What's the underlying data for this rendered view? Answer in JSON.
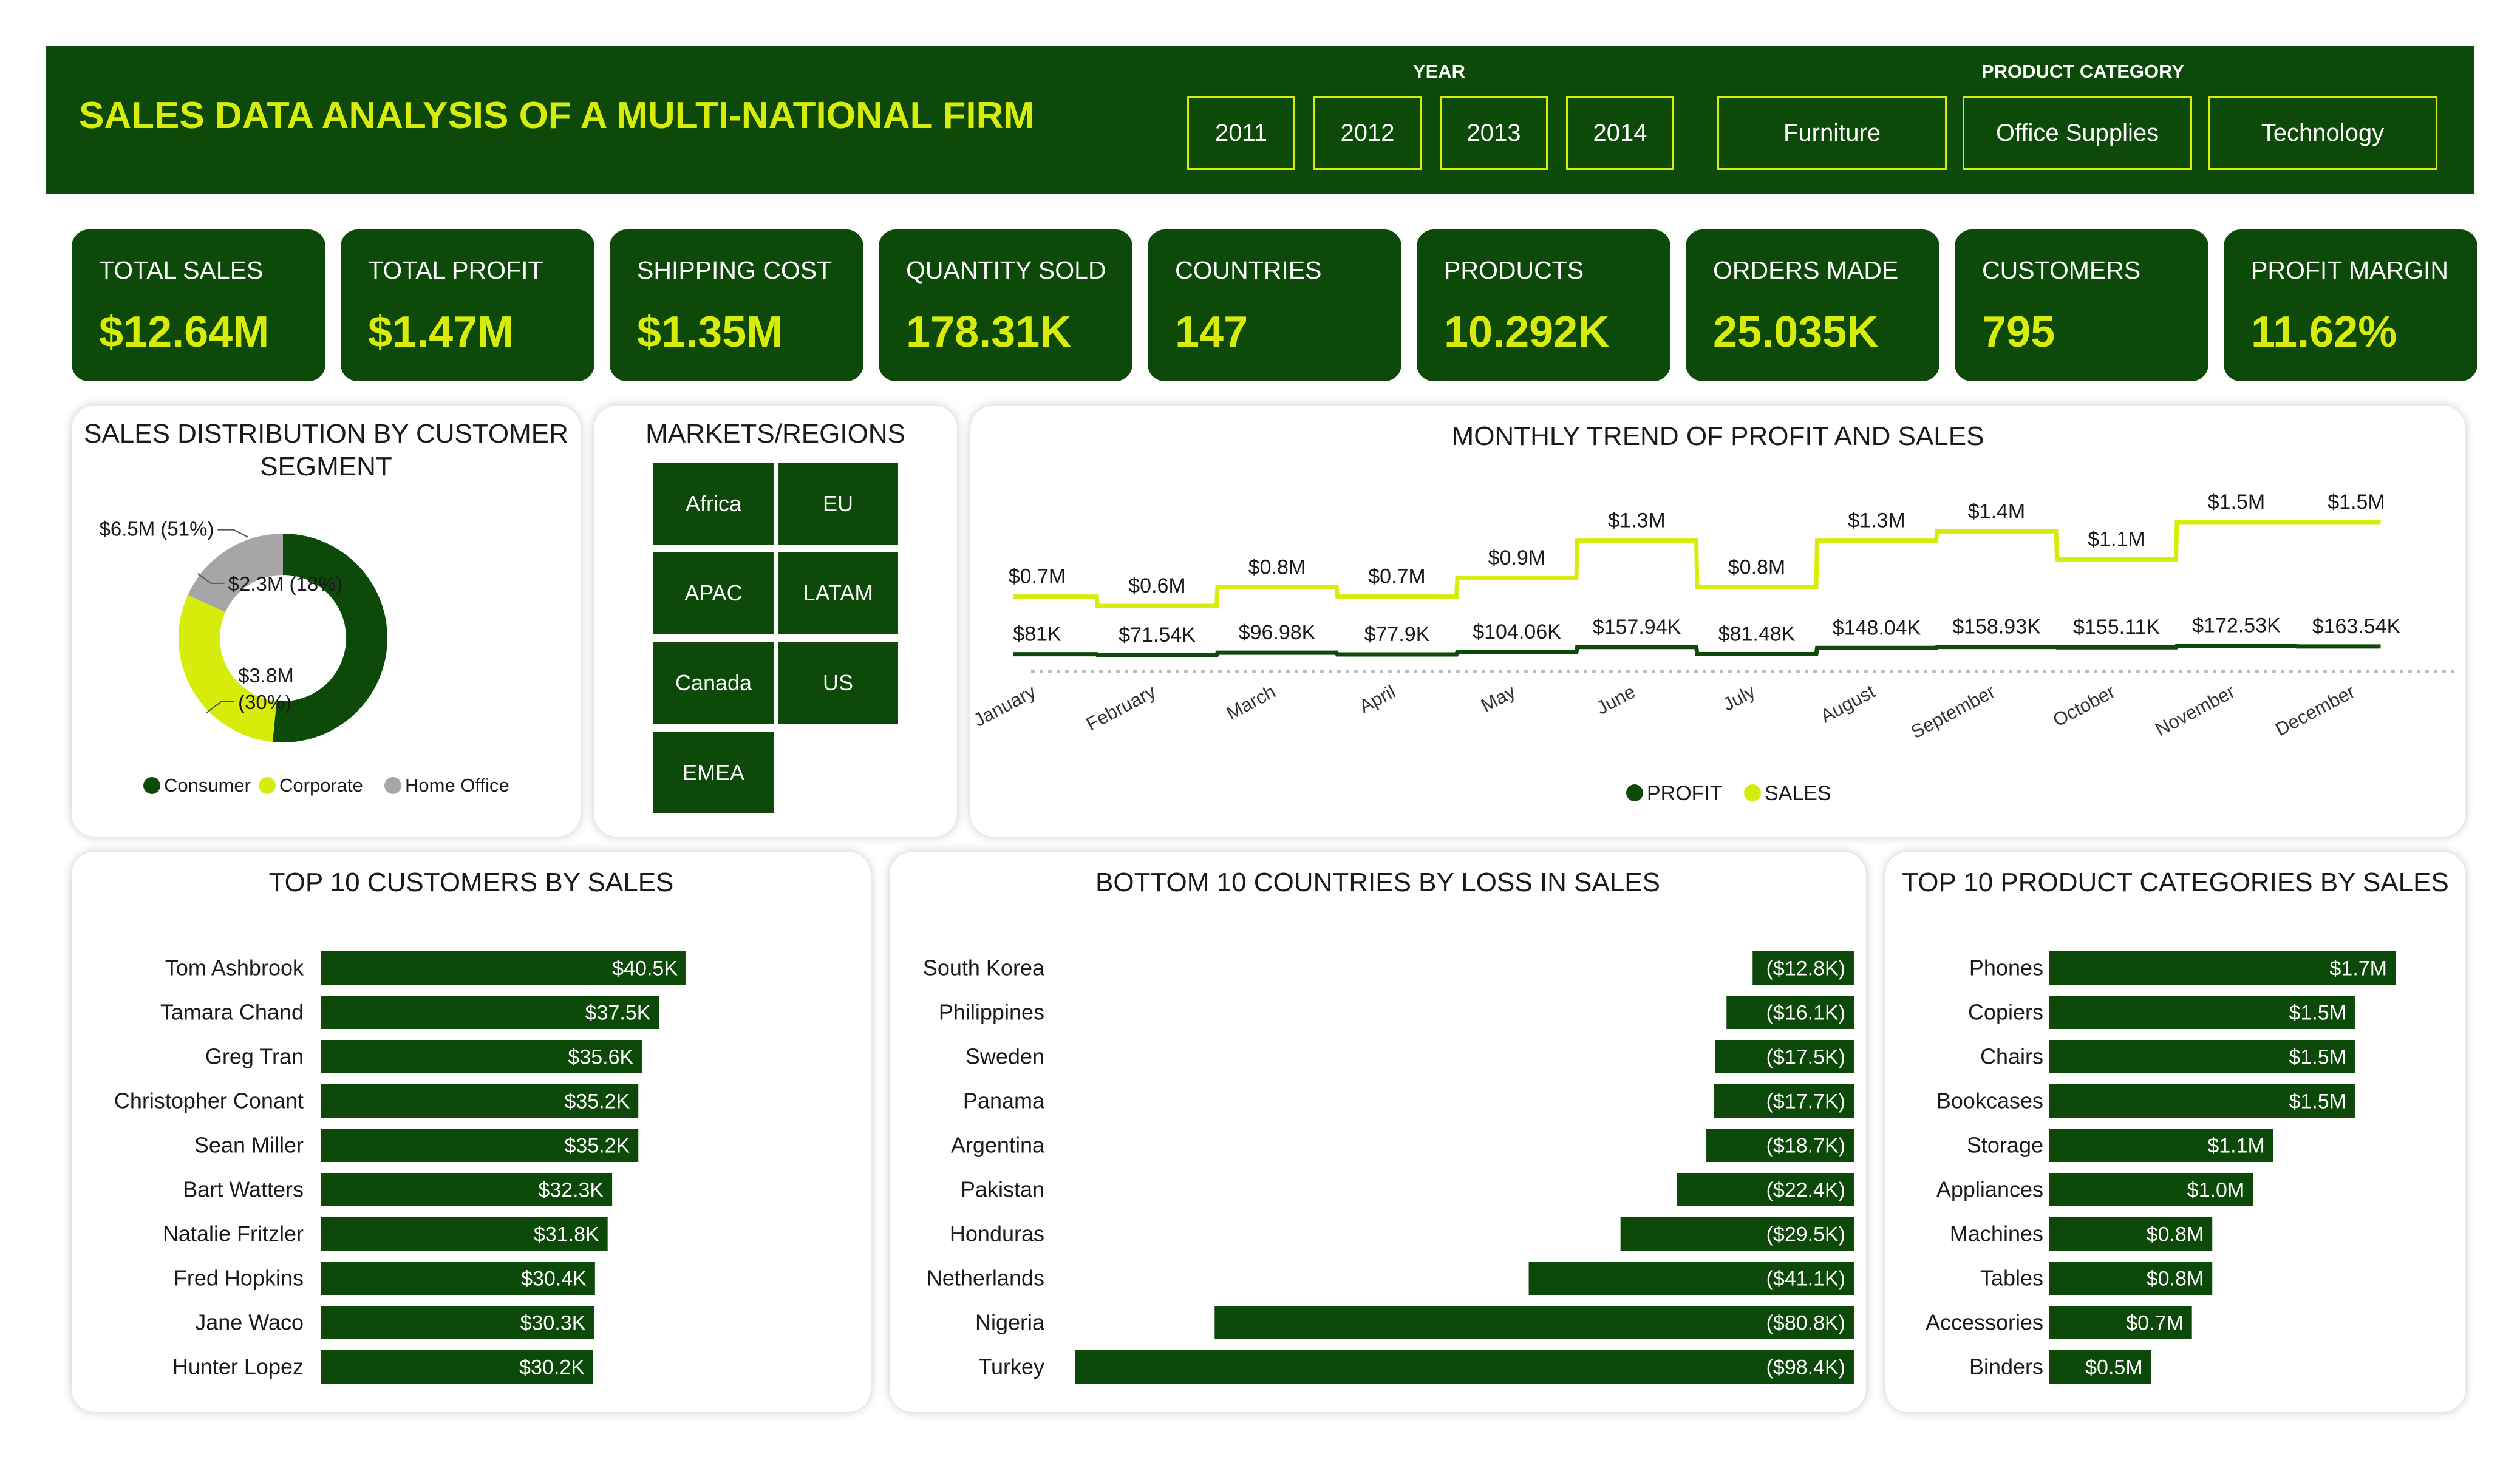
{
  "header": {
    "title": "SALES DATA ANALYSIS OF A MULTI-NATIONAL FIRM",
    "year_label": "YEAR",
    "years": [
      "2011",
      "2012",
      "2013",
      "2014"
    ],
    "category_label": "PRODUCT CATEGORY",
    "categories": [
      "Furniture",
      "Office Supplies",
      "Technology"
    ]
  },
  "kpis": [
    {
      "label": "TOTAL SALES",
      "value": "$12.64M"
    },
    {
      "label": "TOTAL PROFIT",
      "value": "$1.47M"
    },
    {
      "label": "SHIPPING COST",
      "value": "$1.35M"
    },
    {
      "label": "QUANTITY SOLD",
      "value": "178.31K"
    },
    {
      "label": "COUNTRIES",
      "value": "147"
    },
    {
      "label": "PRODUCTS",
      "value": "10.292K"
    },
    {
      "label": "ORDERS MADE",
      "value": "25.035K"
    },
    {
      "label": "CUSTOMERS",
      "value": "795"
    },
    {
      "label": "PROFIT MARGIN",
      "value": "11.62%"
    }
  ],
  "segment_card": {
    "title_line1": "SALES DISTRIBUTION BY CUSTOMER",
    "title_line2": "SEGMENT"
  },
  "markets": {
    "title": "MARKETS/REGIONS",
    "items": [
      "Africa",
      "EU",
      "APAC",
      "LATAM",
      "Canada",
      "US",
      "EMEA"
    ]
  },
  "trend_card": {
    "title": "MONTHLY TREND OF PROFIT AND SALES"
  },
  "customers_card": {
    "title": "TOP 10 CUSTOMERS BY SALES"
  },
  "countries_card": {
    "title": "BOTTOM 10 COUNTRIES BY LOSS IN SALES"
  },
  "products_card": {
    "title": "TOP 10 PRODUCT CATEGORIES BY SALES"
  },
  "colors": {
    "dark_green": "#0d4a0a",
    "lime": "#d8ec0c",
    "gray": "#a6a6a6"
  },
  "chart_data": [
    {
      "id": "segment",
      "type": "pie",
      "title": "SALES DISTRIBUTION BY CUSTOMER SEGMENT",
      "legend": "bottom",
      "slices": [
        {
          "name": "Consumer",
          "value": 6.5,
          "percent": 51,
          "label": "$6.5M (51%)",
          "color": "#0d4a0a"
        },
        {
          "name": "Corporate",
          "value": 3.8,
          "percent": 30,
          "label": "$3.8M",
          "label2": "(30%)",
          "color": "#d8ec0c"
        },
        {
          "name": "Home Office",
          "value": 2.3,
          "percent": 18,
          "label": "$2.3M (18%)",
          "color": "#a6a6a6"
        }
      ]
    },
    {
      "id": "trend",
      "type": "line",
      "title": "MONTHLY TREND OF PROFIT AND SALES",
      "legend": "bottom",
      "categories": [
        "January",
        "February",
        "March",
        "April",
        "May",
        "June",
        "July",
        "August",
        "September",
        "October",
        "November",
        "December"
      ],
      "series": [
        {
          "name": "PROFIT",
          "color": "#0d4a0a",
          "values": [
            0.081,
            0.07154,
            0.09698,
            0.0779,
            0.10406,
            0.15794,
            0.08148,
            0.14804,
            0.15893,
            0.15511,
            0.17253,
            0.16354
          ],
          "labels": [
            "$81K",
            "$71.54K",
            "$96.98K",
            "$77.9K",
            "$104.06K",
            "$157.94K",
            "$81.48K",
            "$148.04K",
            "$158.93K",
            "$155.11K",
            "$172.53K",
            "$163.54K"
          ]
        },
        {
          "name": "SALES",
          "color": "#d8ec0c",
          "values": [
            0.7,
            0.6,
            0.8,
            0.7,
            0.9,
            1.3,
            0.8,
            1.3,
            1.4,
            1.1,
            1.5,
            1.5
          ],
          "labels": [
            "$0.7M",
            "$0.6M",
            "$0.8M",
            "$0.7M",
            "$0.9M",
            "$1.3M",
            "$0.8M",
            "$1.3M",
            "$1.4M",
            "$1.1M",
            "$1.5M",
            "$1.5M"
          ]
        }
      ]
    },
    {
      "id": "customers",
      "type": "bar",
      "title": "TOP 10 CUSTOMERS BY SALES",
      "categories": [
        "Tom Ashbrook",
        "Tamara Chand",
        "Greg Tran",
        "Christopher Conant",
        "Sean Miller",
        "Bart Watters",
        "Natalie Fritzler",
        "Fred Hopkins",
        "Jane Waco",
        "Hunter Lopez"
      ],
      "values": [
        40.5,
        37.5,
        35.6,
        35.2,
        35.2,
        32.3,
        31.8,
        30.4,
        30.3,
        30.2
      ],
      "labels": [
        "$40.5K",
        "$37.5K",
        "$35.6K",
        "$35.2K",
        "$35.2K",
        "$32.3K",
        "$31.8K",
        "$30.4K",
        "$30.3K",
        "$30.2K"
      ]
    },
    {
      "id": "countries",
      "type": "bar",
      "title": "BOTTOM 10 COUNTRIES BY LOSS IN SALES",
      "categories": [
        "South Korea",
        "Philippines",
        "Sweden",
        "Panama",
        "Argentina",
        "Pakistan",
        "Honduras",
        "Netherlands",
        "Nigeria",
        "Turkey"
      ],
      "values": [
        -12.8,
        -16.1,
        -17.5,
        -17.7,
        -18.7,
        -22.4,
        -29.5,
        -41.1,
        -80.8,
        -98.4
      ],
      "labels": [
        "($12.8K)",
        "($16.1K)",
        "($17.5K)",
        "($17.7K)",
        "($18.7K)",
        "($22.4K)",
        "($29.5K)",
        "($41.1K)",
        "($80.8K)",
        "($98.4K)"
      ]
    },
    {
      "id": "products",
      "type": "bar",
      "title": "TOP 10 PRODUCT CATEGORIES BY SALES",
      "categories": [
        "Phones",
        "Copiers",
        "Chairs",
        "Bookcases",
        "Storage",
        "Appliances",
        "Machines",
        "Tables",
        "Accessories",
        "Binders"
      ],
      "values": [
        1.7,
        1.5,
        1.5,
        1.5,
        1.1,
        1.0,
        0.8,
        0.8,
        0.7,
        0.5
      ],
      "labels": [
        "$1.7M",
        "$1.5M",
        "$1.5M",
        "$1.5M",
        "$1.1M",
        "$1.0M",
        "$0.8M",
        "$0.8M",
        "$0.7M",
        "$0.5M"
      ]
    }
  ]
}
